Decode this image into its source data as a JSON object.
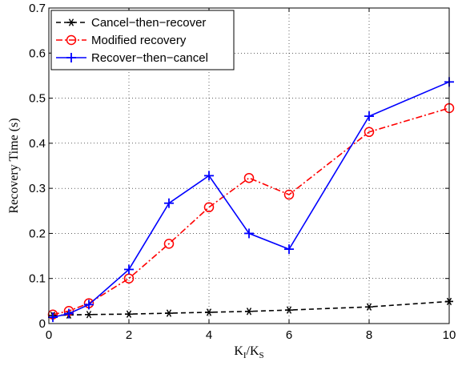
{
  "chart_data": {
    "type": "line",
    "title": "",
    "xlabel": {
      "main": "K",
      "sub1": "I",
      "sep": "/K",
      "sub2": "S"
    },
    "ylabel": "Recovery Time (s)",
    "xlim": [
      0,
      10
    ],
    "ylim": [
      0,
      0.7
    ],
    "xticks": [
      0,
      2,
      4,
      6,
      8,
      10
    ],
    "yticks": [
      0,
      0.1,
      0.2,
      0.3,
      0.4,
      0.5,
      0.6,
      0.7
    ],
    "grid": true,
    "legend_position": "top-left",
    "series": [
      {
        "name": "Cancel−then−recover",
        "color": "#000000",
        "line_style": "dashed",
        "marker": "asterisk",
        "x": [
          0.1,
          0.5,
          1,
          2,
          3,
          4,
          5,
          6,
          8,
          10
        ],
        "y": [
          0.018,
          0.019,
          0.02,
          0.021,
          0.023,
          0.025,
          0.027,
          0.03,
          0.037,
          0.049
        ]
      },
      {
        "name": "Modified recovery",
        "color": "#ff0000",
        "line_style": "dashdot",
        "marker": "circle",
        "x": [
          0.1,
          0.5,
          1,
          2,
          3,
          4,
          5,
          6,
          8,
          10
        ],
        "y": [
          0.02,
          0.028,
          0.045,
          0.1,
          0.177,
          0.258,
          0.323,
          0.286,
          0.425,
          0.478
        ]
      },
      {
        "name": "Recover−then−cancel",
        "color": "#0000ff",
        "line_style": "solid",
        "marker": "plus",
        "x": [
          0.1,
          0.5,
          1,
          2,
          3,
          4,
          5,
          6,
          8,
          10
        ],
        "y": [
          0.014,
          0.022,
          0.042,
          0.12,
          0.267,
          0.328,
          0.2,
          0.165,
          0.46,
          0.536
        ]
      }
    ]
  }
}
